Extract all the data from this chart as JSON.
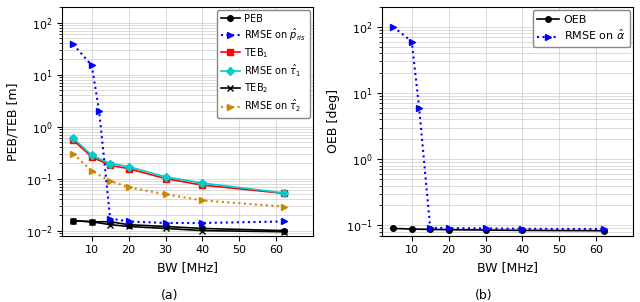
{
  "left": {
    "ylabel": "PEB/TEB [m]",
    "xlabel": "BW [MHz]",
    "label_a": "(a)",
    "ylim": [
      0.008,
      200
    ],
    "xlim": [
      2,
      70
    ],
    "xticks": [
      10,
      20,
      30,
      40,
      50,
      60
    ],
    "series": {
      "PEB": {
        "x": [
          5,
          10,
          15,
          20,
          30,
          40,
          62
        ],
        "y": [
          0.0155,
          0.0148,
          0.0148,
          0.013,
          0.012,
          0.011,
          0.01
        ],
        "color": "#000000",
        "linestyle": "-",
        "marker": "o",
        "markersize": 4,
        "linewidth": 1.2,
        "label": "PEB",
        "zorder": 3
      },
      "RMSE_p": {
        "x": [
          5,
          10,
          12,
          15,
          20,
          30,
          40,
          62
        ],
        "y": [
          38,
          15,
          2.0,
          0.017,
          0.015,
          0.014,
          0.014,
          0.015
        ],
        "color": "#0000FF",
        "linestyle": ":",
        "marker": ">",
        "markersize": 5,
        "linewidth": 1.5,
        "label": "RMSE on $\\hat{p}_{ris}$",
        "zorder": 4
      },
      "TEB1": {
        "x": [
          5,
          10,
          15,
          20,
          30,
          40,
          62
        ],
        "y": [
          0.55,
          0.26,
          0.18,
          0.155,
          0.1,
          0.075,
          0.052
        ],
        "color": "#FF0000",
        "linestyle": "-",
        "marker": "s",
        "markersize": 4,
        "linewidth": 1.2,
        "label": "TEB$_1$",
        "zorder": 3
      },
      "RMSE_tau1": {
        "x": [
          5,
          10,
          15,
          20,
          30,
          40,
          62
        ],
        "y": [
          0.6,
          0.28,
          0.195,
          0.17,
          0.108,
          0.082,
          0.053
        ],
        "color": "#00CCCC",
        "linestyle": "-",
        "marker": "D",
        "markersize": 4,
        "linewidth": 1.2,
        "label": "RMSE on $\\hat{\\tau}_1$",
        "zorder": 3
      },
      "TEB2": {
        "x": [
          5,
          10,
          15,
          20,
          30,
          40,
          62
        ],
        "y": [
          0.0155,
          0.0148,
          0.013,
          0.012,
          0.011,
          0.01,
          0.0095
        ],
        "color": "#000000",
        "linestyle": "-",
        "marker": "x",
        "markersize": 5,
        "linewidth": 1.2,
        "label": "TEB$_2$",
        "zorder": 3
      },
      "RMSE_tau2": {
        "x": [
          5,
          10,
          15,
          20,
          30,
          40,
          62
        ],
        "y": [
          0.3,
          0.14,
          0.09,
          0.068,
          0.05,
          0.038,
          0.029
        ],
        "color": "#CC8800",
        "linestyle": ":",
        "marker": ">",
        "markersize": 5,
        "linewidth": 1.5,
        "label": "RMSE on $\\hat{\\tau}_2$",
        "zorder": 3
      }
    }
  },
  "right": {
    "ylabel": "OEB [deg]",
    "xlabel": "BW [MHz]",
    "label_b": "(b)",
    "ylim": [
      0.07,
      200
    ],
    "xlim": [
      2,
      70
    ],
    "xticks": [
      10,
      20,
      30,
      40,
      50,
      60
    ],
    "series": {
      "OEB": {
        "x": [
          5,
          10,
          15,
          20,
          30,
          40,
          62
        ],
        "y": [
          0.09,
          0.088,
          0.087,
          0.086,
          0.085,
          0.084,
          0.083
        ],
        "color": "#000000",
        "linestyle": "-",
        "marker": "o",
        "markersize": 4,
        "linewidth": 1.2,
        "label": "OEB",
        "zorder": 3
      },
      "RMSE_alpha": {
        "x": [
          5,
          10,
          12,
          15,
          20,
          30,
          40,
          62
        ],
        "y": [
          100,
          60,
          6.0,
          0.092,
          0.091,
          0.09,
          0.089,
          0.088
        ],
        "color": "#0000FF",
        "linestyle": ":",
        "marker": ">",
        "markersize": 5,
        "linewidth": 1.5,
        "label": "RMSE on $\\hat{\\alpha}$",
        "zorder": 4
      }
    }
  },
  "figsize": [
    6.4,
    3.02
  ],
  "dpi": 100,
  "grid_color": "#cccccc",
  "grid_linewidth": 0.5,
  "tick_labelsize": 8,
  "axis_labelsize": 9,
  "legend_fontsize": 7
}
